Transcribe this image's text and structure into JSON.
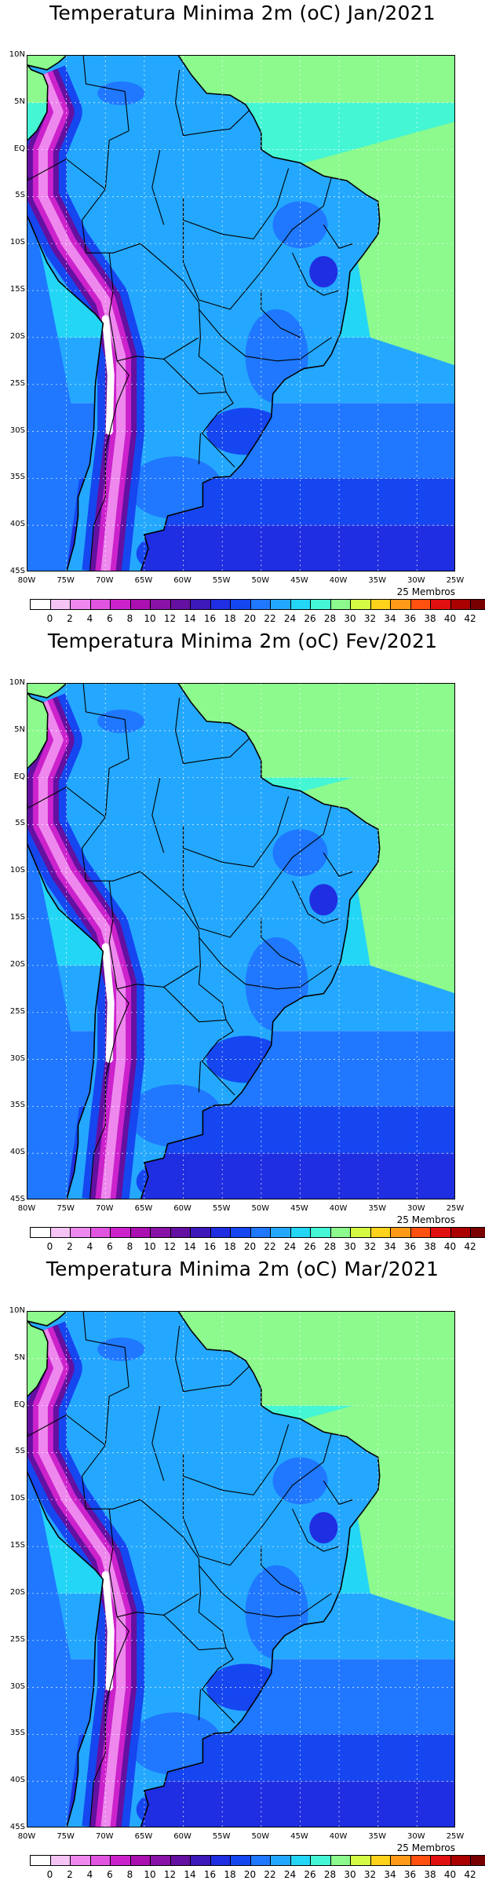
{
  "panels": [
    {
      "title": "Temperatura Minima 2m (oC) Jan/2021"
    },
    {
      "title": "Temperatura Minima 2m (oC) Fev/2021"
    },
    {
      "title": "Temperatura Minima 2m (oC) Mar/2021"
    }
  ],
  "lat_labels": [
    "10N",
    "5N",
    "EQ",
    "5S",
    "10S",
    "15S",
    "20S",
    "25S",
    "30S",
    "35S",
    "40S",
    "45S"
  ],
  "lon_labels": [
    "80W",
    "75W",
    "70W",
    "65W",
    "60W",
    "55W",
    "50W",
    "45W",
    "40W",
    "35W",
    "30W",
    "25W"
  ],
  "members_label": "25 Membros",
  "colorbar": {
    "ticks": [
      "0",
      "2",
      "4",
      "6",
      "8",
      "10",
      "12",
      "14",
      "16",
      "18",
      "20",
      "22",
      "24",
      "26",
      "28",
      "30",
      "32",
      "34",
      "36",
      "38",
      "40",
      "42"
    ],
    "colors": [
      "#ffffff",
      "#f5c4f5",
      "#ee88ee",
      "#e055e0",
      "#cc22cc",
      "#aa10b0",
      "#8812a6",
      "#6410a0",
      "#3c18b8",
      "#1f2ee0",
      "#1546f0",
      "#1f78ff",
      "#24a8ff",
      "#24d6f6",
      "#44f6d4",
      "#8cfa8c",
      "#d4fa44",
      "#ffd21c",
      "#ff9a18",
      "#ff5010",
      "#e01010",
      "#aa0000",
      "#780000"
    ]
  }
}
